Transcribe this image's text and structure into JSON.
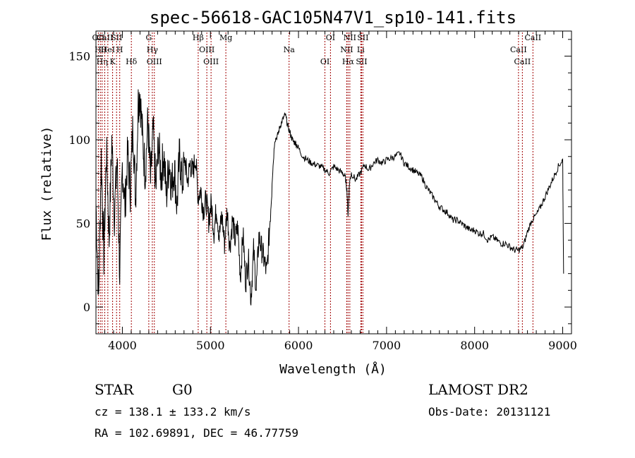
{
  "chart_data": {
    "type": "line",
    "title": "spec-56618-GAC105N47V1_sp10-141.fits",
    "xlabel": "Wavelength (Å)",
    "ylabel": "Flux (relative)",
    "xlim": [
      3700,
      9100
    ],
    "ylim": [
      -16,
      165
    ],
    "xticks": [
      4000,
      5000,
      6000,
      7000,
      8000,
      9000
    ],
    "yticks": [
      0,
      50,
      100,
      150
    ],
    "grid": false,
    "line_color": "#000000",
    "marker_color": "#a00000",
    "series": [
      {
        "x": [
          3700,
          3730,
          3760,
          3790,
          3820,
          3850,
          3880,
          3910,
          3940,
          3970,
          4000,
          4030,
          4060,
          4090,
          4120,
          4150,
          4180,
          4200,
          4230,
          4260,
          4290,
          4320,
          4350,
          4380,
          4410,
          4440,
          4470,
          4500,
          4530,
          4560,
          4590,
          4620,
          4650,
          4680,
          4710,
          4740,
          4770,
          4800,
          4830,
          4860,
          4890,
          4920,
          4950,
          4980,
          5010,
          5040,
          5070,
          5100,
          5130,
          5160,
          5190,
          5220,
          5250,
          5280,
          5310,
          5340,
          5370,
          5400,
          5430,
          5460,
          5490,
          5520,
          5550,
          5580,
          5610,
          5640,
          5670,
          5700,
          5730,
          5760,
          5790,
          5820,
          5850,
          5880,
          5910,
          5940,
          5970,
          6000,
          6050,
          6100,
          6150,
          6200,
          6250,
          6300,
          6350,
          6400,
          6450,
          6500,
          6530,
          6550,
          6563,
          6580,
          6600,
          6650,
          6700,
          6750,
          6800,
          6850,
          6900,
          6950,
          7000,
          7050,
          7100,
          7150,
          7200,
          7250,
          7300,
          7350,
          7400,
          7450,
          7500,
          7550,
          7600,
          7650,
          7700,
          7750,
          7800,
          7850,
          7900,
          7950,
          8000,
          8050,
          8100,
          8150,
          8200,
          8250,
          8300,
          8350,
          8400,
          8450,
          8500,
          8550,
          8600,
          8650,
          8700,
          8750,
          8800,
          8850,
          8900,
          8950,
          9000,
          9010
        ],
        "values": [
          62,
          5,
          90,
          30,
          95,
          40,
          100,
          55,
          88,
          20,
          85,
          60,
          92,
          70,
          110,
          65,
          122,
          128,
          100,
          80,
          112,
          75,
          105,
          70,
          98,
          78,
          92,
          66,
          88,
          72,
          84,
          60,
          92,
          74,
          88,
          75,
          86,
          80,
          90,
          66,
          70,
          58,
          64,
          52,
          62,
          45,
          60,
          42,
          55,
          38,
          58,
          36,
          52,
          40,
          48,
          18,
          44,
          15,
          30,
          5,
          34,
          10,
          42,
          35,
          28,
          20,
          46,
          75,
          100,
          102,
          108,
          112,
          115,
          108,
          103,
          99,
          98,
          95,
          90,
          88,
          86,
          85,
          84,
          82,
          80,
          84,
          82,
          80,
          78,
          70,
          55,
          75,
          80,
          76,
          80,
          85,
          82,
          86,
          88,
          86,
          88,
          89,
          90,
          92,
          86,
          84,
          82,
          80,
          78,
          72,
          68,
          64,
          60,
          58,
          56,
          52,
          52,
          50,
          48,
          46,
          46,
          44,
          44,
          40,
          42,
          40,
          38,
          38,
          36,
          34,
          34,
          36,
          45,
          52,
          55,
          60,
          66,
          72,
          78,
          84,
          88,
          20
        ]
      }
    ],
    "lines": [
      {
        "w": 3727,
        "labels": [
          "OII"
        ]
      },
      {
        "w": 3750,
        "labels": [
          "Hθ"
        ]
      },
      {
        "w": 3770,
        "labels": [
          "Hη"
        ]
      },
      {
        "w": 3800,
        "labels": [
          "CaII"
        ]
      },
      {
        "w": 3835,
        "labels": [
          "HeI"
        ]
      },
      {
        "w": 3889,
        "labels": [
          "K"
        ]
      },
      {
        "w": 3934,
        "labels": [
          "SII"
        ]
      },
      {
        "w": 3970,
        "labels": [
          "H"
        ]
      },
      {
        "w": 4102,
        "labels": [
          "Hδ"
        ]
      },
      {
        "w": 4300,
        "labels": [
          "G"
        ]
      },
      {
        "w": 4340,
        "labels": [
          "Hγ"
        ]
      },
      {
        "w": 4363,
        "labels": [
          "OIII"
        ]
      },
      {
        "w": 4861,
        "labels": [
          "Hβ"
        ]
      },
      {
        "w": 4959,
        "labels": [
          "OIII"
        ]
      },
      {
        "w": 5007,
        "labels": [
          "OIII"
        ]
      },
      {
        "w": 5175,
        "labels": [
          "Mg"
        ]
      },
      {
        "w": 5893,
        "labels": [
          "Na"
        ]
      },
      {
        "w": 6300,
        "labels": [
          "OI"
        ]
      },
      {
        "w": 6363,
        "labels": [
          "OI"
        ]
      },
      {
        "w": 6548,
        "labels": [
          "NII"
        ]
      },
      {
        "w": 6563,
        "labels": [
          "Hα"
        ]
      },
      {
        "w": 6583,
        "labels": [
          "NII"
        ]
      },
      {
        "w": 6707,
        "labels": [
          "Li"
        ]
      },
      {
        "w": 6716,
        "labels": [
          "SII"
        ]
      },
      {
        "w": 6731,
        "labels": [
          "SII"
        ]
      },
      {
        "w": 8498,
        "labels": [
          "CaII"
        ]
      },
      {
        "w": 8542,
        "labels": [
          "CaII"
        ]
      },
      {
        "w": 8662,
        "labels": [
          "CaII"
        ]
      }
    ]
  },
  "footer": {
    "object_type": "STAR",
    "subclass": "G0",
    "survey": "LAMOST DR2",
    "cz": "cz = 138.1 ± 133.2 km/s",
    "obs_date": "Obs-Date: 20131121",
    "coords": "RA = 102.69891, DEC =  46.77759"
  }
}
